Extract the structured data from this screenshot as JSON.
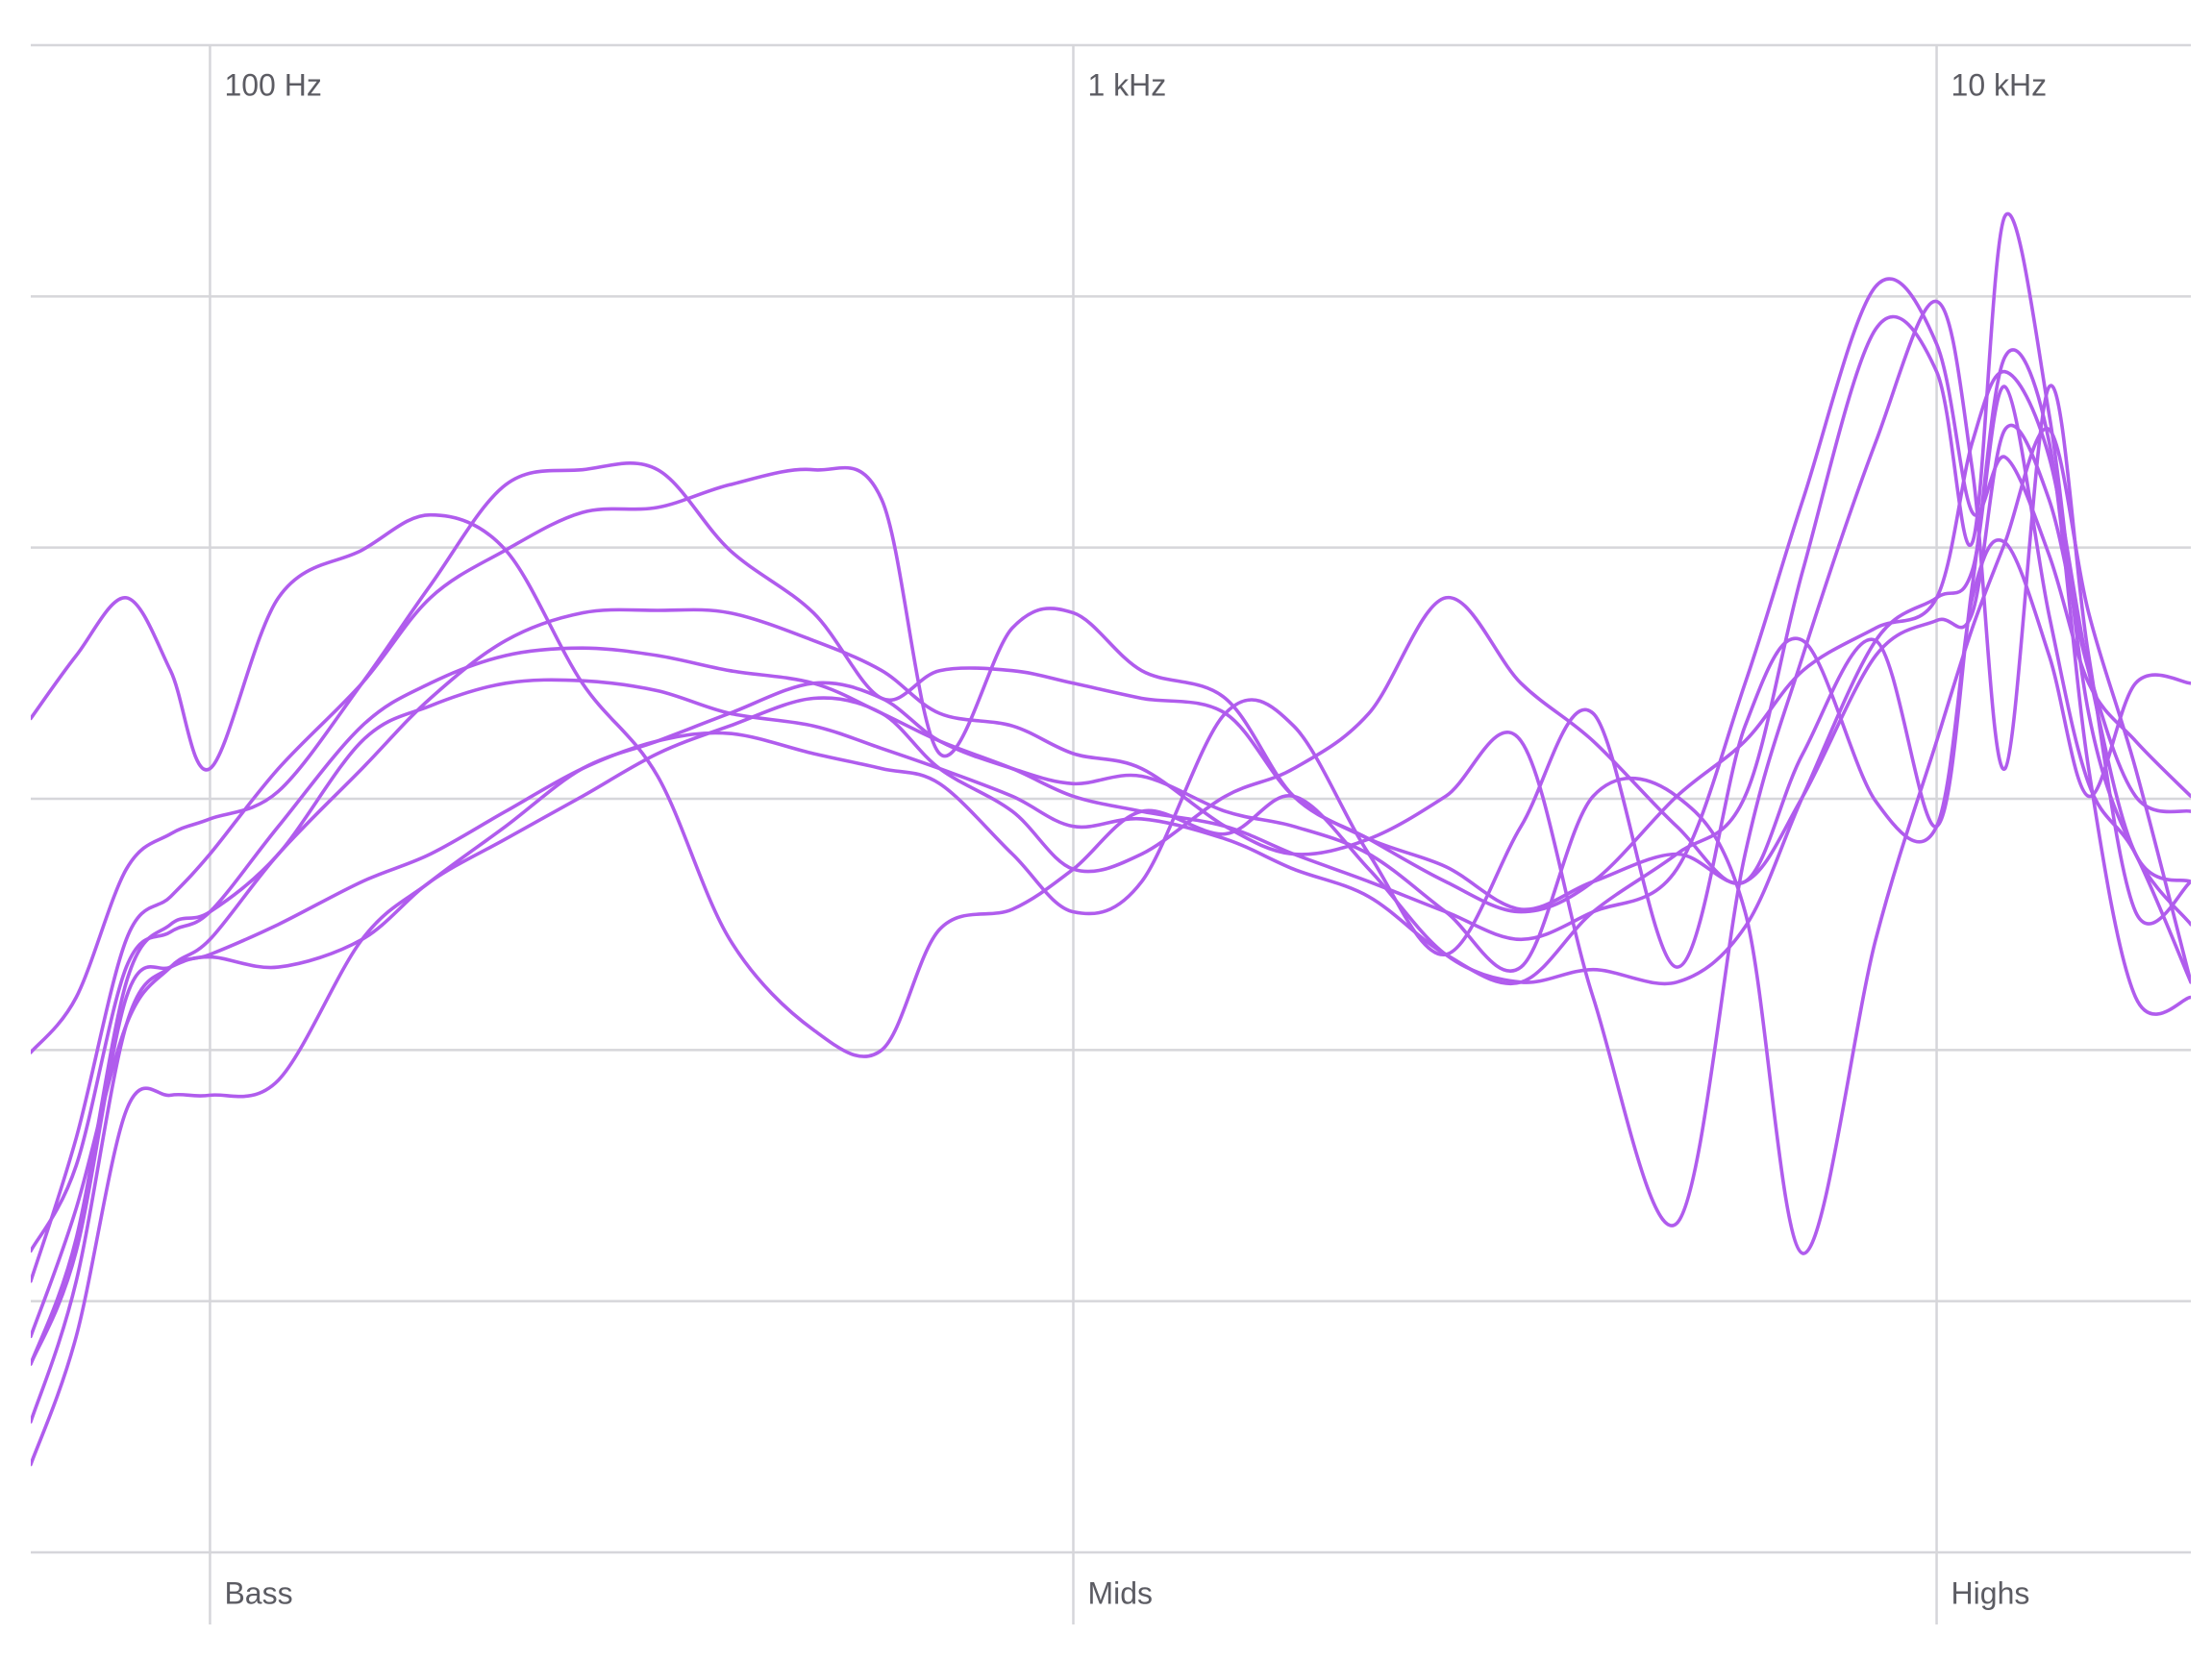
{
  "chart_data": {
    "type": "line",
    "x": [
      62,
      70,
      80,
      90,
      100,
      120,
      150,
      180,
      220,
      270,
      330,
      400,
      500,
      600,
      700,
      850,
      1000,
      1200,
      1500,
      1800,
      2200,
      2700,
      3300,
      4000,
      5000,
      6000,
      7000,
      8500,
      10000,
      11000,
      12000,
      13500,
      15000,
      17000,
      19700
    ],
    "xlim": [
      62,
      19700
    ],
    "xlog": true,
    "xticks": [
      {
        "value": 100,
        "label": "100 Hz"
      },
      {
        "value": 1000,
        "label": "1 kHz"
      },
      {
        "value": 10000,
        "label": "10 kHz"
      }
    ],
    "band_labels": [
      "Bass",
      "Mids",
      "Highs"
    ],
    "ylim": [
      -30,
      30
    ],
    "yticks": [
      -30,
      -20,
      -10,
      0,
      10,
      20,
      30
    ],
    "grid": true,
    "color": "#b05ced",
    "series": [
      {
        "values": [
          3.2,
          5.7,
          8.0,
          5.1,
          1.2,
          8.0,
          9.9,
          11.3,
          9.9,
          4.6,
          0.9,
          -5.6,
          -9.2,
          -10.0,
          -5.2,
          -4.4,
          -2.8,
          -0.5,
          -1.4,
          0.1,
          -2.8,
          -6.2,
          -7.3,
          -6.8,
          -7.3,
          -5.1,
          0.1,
          6.3,
          8.0,
          9.1,
          16.4,
          7.3,
          0.6,
          -2.2,
          -7.3
        ]
      },
      {
        "values": [
          -10.1,
          -7.9,
          -2.8,
          -1.4,
          -0.8,
          0.3,
          4.6,
          8.5,
          12.5,
          13.1,
          13.1,
          9.9,
          7.4,
          4.0,
          5.1,
          5.1,
          4.6,
          4.0,
          3.4,
          0.1,
          -1.6,
          -2.7,
          -4.4,
          -3.3,
          -2.2,
          -3.3,
          0.1,
          5.7,
          7.1,
          7.4,
          14.7,
          11.9,
          5.1,
          0.1,
          -0.5
        ]
      },
      {
        "values": [
          -19.2,
          -13.5,
          -5.6,
          -3.9,
          -2.2,
          1.2,
          4.6,
          8.0,
          9.9,
          11.4,
          11.6,
          12.5,
          13.1,
          11.9,
          1.8,
          6.8,
          7.4,
          5.1,
          4.0,
          0.1,
          -1.6,
          -3.3,
          -4.5,
          -3.3,
          0.1,
          2.3,
          5.1,
          6.8,
          8.0,
          14.2,
          17.0,
          13.6,
          5.1,
          -2.2,
          -3.3
        ]
      },
      {
        "values": [
          -21.4,
          -16.3,
          -9.0,
          -6.7,
          -5.6,
          -2.2,
          1.2,
          4.0,
          6.3,
          7.4,
          7.5,
          7.4,
          6.3,
          5.1,
          3.4,
          2.9,
          1.8,
          1.2,
          -1.1,
          -2.2,
          -1.6,
          0.1,
          2.3,
          -7.9,
          -16.9,
          -2.2,
          5.7,
          14.2,
          19.8,
          13.1,
          1.2,
          16.4,
          5.7,
          -4.5,
          -3.3
        ]
      },
      {
        "values": [
          -26.5,
          -21.4,
          -12.4,
          -11.8,
          -11.8,
          -11.2,
          -5.6,
          -3.3,
          -1.1,
          1.2,
          2.3,
          3.4,
          4.6,
          4.0,
          2.3,
          1.2,
          0.6,
          0.9,
          -0.5,
          -1.1,
          -2.2,
          -4.5,
          -6.7,
          0.1,
          0.1,
          -4.5,
          -18.1,
          -5.6,
          2.3,
          6.8,
          10.2,
          14.7,
          7.4,
          1.2,
          -7.3
        ]
      },
      {
        "values": [
          -22.5,
          -18.0,
          -7.9,
          -6.7,
          -6.3,
          -6.7,
          -5.6,
          -3.3,
          -1.6,
          0.1,
          1.8,
          2.9,
          4.0,
          3.4,
          1.2,
          -0.5,
          -2.8,
          -2.2,
          0.1,
          1.2,
          3.4,
          8.0,
          4.6,
          2.3,
          -1.1,
          -3.3,
          1.8,
          6.3,
          -1.1,
          8.5,
          17.6,
          14.2,
          1.2,
          -7.9,
          -7.9
        ]
      },
      {
        "values": [
          -18.0,
          -14.6,
          -6.7,
          -5.3,
          -4.5,
          -1.1,
          2.9,
          4.6,
          5.7,
          6.0,
          5.7,
          5.1,
          4.6,
          3.4,
          2.3,
          1.2,
          0.1,
          -0.5,
          -1.1,
          -2.2,
          -3.3,
          -4.5,
          -5.6,
          -4.5,
          -2.8,
          4.6,
          11.9,
          20.4,
          18.1,
          11.4,
          13.6,
          9.7,
          4.6,
          2.3,
          0.1
        ]
      },
      {
        "values": [
          -22.5,
          -17.5,
          -7.3,
          -5.0,
          -4.5,
          -2.2,
          2.3,
          3.7,
          4.6,
          4.7,
          4.3,
          3.4,
          2.9,
          2.0,
          1.2,
          0.1,
          -1.1,
          -0.8,
          -1.6,
          -2.8,
          -3.9,
          -6.2,
          -7.3,
          -4.5,
          -2.2,
          0.1,
          9.1,
          18.7,
          17.0,
          10.2,
          23.2,
          15.3,
          3.4,
          -2.2,
          -5.0
        ]
      },
      {
        "values": [
          -24.8,
          -19.2,
          -9.0,
          -6.7,
          -6.2,
          -5.0,
          -3.3,
          -2.2,
          -0.5,
          1.2,
          2.3,
          2.6,
          1.8,
          1.2,
          0.6,
          -2.2,
          -4.5,
          -3.3,
          3.4,
          2.9,
          -2.2,
          -6.2,
          -1.1,
          3.4,
          -6.7,
          2.9,
          6.3,
          -0.1,
          -1.1,
          8.0,
          10.2,
          5.7,
          0.1,
          4.6,
          4.6
        ]
      }
    ]
  }
}
